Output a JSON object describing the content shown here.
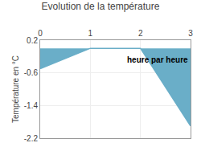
{
  "chart_data": {
    "type": "area",
    "title": "Evolution de la température",
    "ylabel": "Température en °C",
    "x": [
      0,
      1,
      2,
      3
    ],
    "values": [
      -0.5,
      0.0,
      0.0,
      -1.9
    ],
    "color": "#6aaec8",
    "xlim": [
      0,
      3
    ],
    "ylim": [
      -2.2,
      0.2
    ],
    "xticks": [
      0,
      1,
      2,
      3
    ],
    "yticks": [
      0.2,
      -0.6,
      -1.4,
      -2.2
    ],
    "grid": true,
    "annotations": [
      {
        "text": "heure par heure",
        "x": 1.7,
        "y": -0.42
      }
    ]
  }
}
